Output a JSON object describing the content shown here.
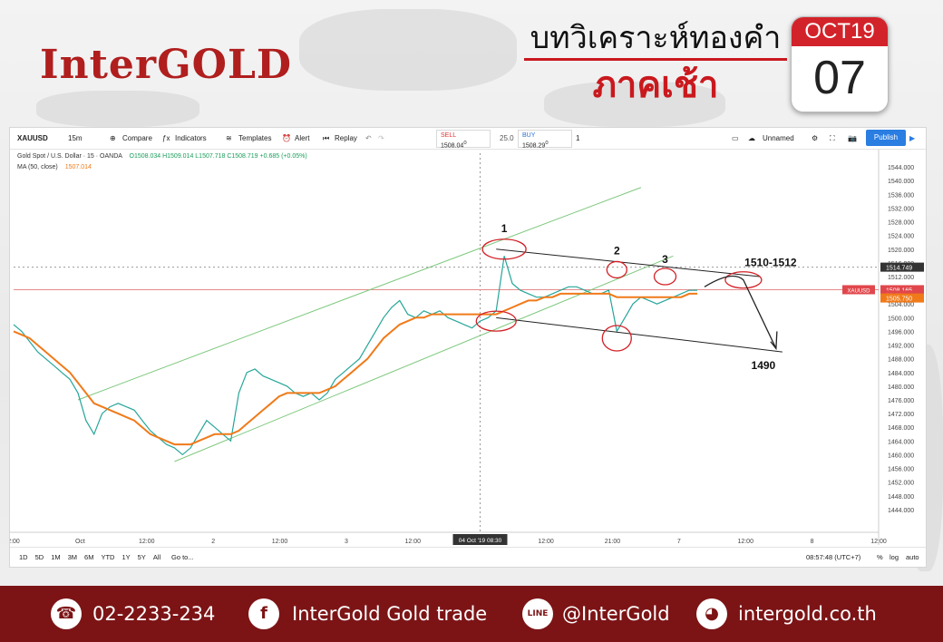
{
  "brand": {
    "name": "InterGOLD"
  },
  "header": {
    "title_line1": "บทวิเคราะห์ทองคำ",
    "title_line2": "ภาคเช้า"
  },
  "calendar": {
    "month": "OCT19",
    "day": "07"
  },
  "toolbar": {
    "symbol": "XAUUSD",
    "interval": "15m",
    "compare": "Compare",
    "indicators": "Indicators",
    "templates": "Templates",
    "alert": "Alert",
    "replay": "Replay",
    "sell_label": "SELL",
    "sell_price": "1508.04",
    "sell_sup": "0",
    "spread": "25.0",
    "buy_label": "BUY",
    "buy_price": "1508.29",
    "buy_sup": "0",
    "qty": "1",
    "unnamed": "Unnamed",
    "publish": "Publish"
  },
  "legend": {
    "instrument": "Gold Spot / U.S. Dollar · 15 · OANDA",
    "ohlc": "O1508.034  H1509.014  L1507.718  C1508.719  +0.685 (+0.05%)",
    "ma_label": "MA (50, close)",
    "ma_value": "1507.014"
  },
  "bottombar": {
    "ranges": [
      "1D",
      "5D",
      "1M",
      "3M",
      "6M",
      "YTD",
      "1Y",
      "5Y",
      "All"
    ],
    "goto": "Go to...",
    "clock": "08:57:48 (UTC+7)",
    "pct": "%",
    "log": "log",
    "auto": "auto"
  },
  "chart_data": {
    "type": "line",
    "symbol": "XAUUSD",
    "ylim": [
      1440,
      1548
    ],
    "y_ticks": [
      1544,
      1540,
      1536,
      1532,
      1528,
      1524,
      1520,
      1516,
      1512,
      1508,
      1504,
      1500,
      1496,
      1492,
      1488,
      1484,
      1480,
      1476,
      1472,
      1468,
      1464,
      1460,
      1456,
      1452,
      1448,
      1444
    ],
    "x_ticks": [
      "2:00",
      "Oct",
      "12:00",
      "2",
      "12:00",
      "3",
      "12:00",
      "4",
      "12:00",
      "21:00",
      "7",
      "12:00",
      "8",
      "12:00"
    ],
    "crosshair_x_label": "04 Oct '19  08:30",
    "price_labels": [
      {
        "label": "",
        "value": "1514.749"
      },
      {
        "label": "XAUUSD",
        "value": "1508.165"
      },
      {
        "label": "",
        "value": "02:11"
      },
      {
        "label": "",
        "value": "1505.750"
      }
    ],
    "series": [
      {
        "name": "",
        "values": [
          1498,
          1496,
          1493,
          1490,
          1488,
          1486,
          1484,
          1482,
          1478,
          1470,
          1466,
          1472,
          1474,
          1475,
          1474,
          1473,
          1470,
          1467,
          1465,
          1463,
          1462,
          1460,
          1462,
          1466,
          1470,
          1468,
          1466,
          1464,
          1478,
          1484,
          1485,
          1483,
          1482,
          1481,
          1480,
          1478,
          1477,
          1478,
          1476,
          1478,
          1482,
          1484,
          1486,
          1488,
          1492,
          1496,
          1500,
          1503,
          1505,
          1501,
          1500,
          1502,
          1501,
          1502,
          1500,
          1499,
          1498,
          1497,
          1499,
          1500,
          1502,
          1518,
          1510,
          1508,
          1507,
          1506,
          1506,
          1507,
          1508,
          1509,
          1509,
          1508,
          1507,
          1507,
          1508,
          1496,
          1500,
          1504,
          1506,
          1505,
          1504,
          1505,
          1506,
          1507,
          1508,
          1508
        ]
      },
      {
        "name": "MA (50, close)",
        "values": [
          1496,
          1495,
          1494,
          1492,
          1490,
          1488,
          1486,
          1484,
          1481,
          1478,
          1475,
          1474,
          1473,
          1472,
          1471,
          1470,
          1468,
          1466,
          1465,
          1464,
          1463,
          1463,
          1463,
          1464,
          1465,
          1466,
          1466,
          1466,
          1467,
          1469,
          1471,
          1473,
          1475,
          1477,
          1478,
          1478,
          1478,
          1478,
          1478,
          1479,
          1480,
          1482,
          1484,
          1486,
          1488,
          1491,
          1494,
          1496,
          1498,
          1499,
          1500,
          1500,
          1501,
          1501,
          1501,
          1501,
          1501,
          1501,
          1501,
          1501,
          1501,
          1502,
          1503,
          1504,
          1505,
          1505,
          1506,
          1506,
          1507,
          1507,
          1507,
          1507,
          1507,
          1507,
          1507,
          1506,
          1506,
          1506,
          1506,
          1506,
          1506,
          1506,
          1506,
          1506,
          1507,
          1507
        ]
      }
    ],
    "annotations": [
      {
        "label": "1",
        "price": 1520
      },
      {
        "label": "2",
        "price": 1514
      },
      {
        "label": "3",
        "price": 1512
      },
      {
        "label": "1510-1512",
        "price": 1511
      },
      {
        "label": "1490",
        "price": 1490
      }
    ]
  },
  "footer": {
    "phone": "02-2233-234",
    "facebook": "InterGold Gold trade",
    "line": "@InterGold",
    "web": "intergold.co.th"
  }
}
